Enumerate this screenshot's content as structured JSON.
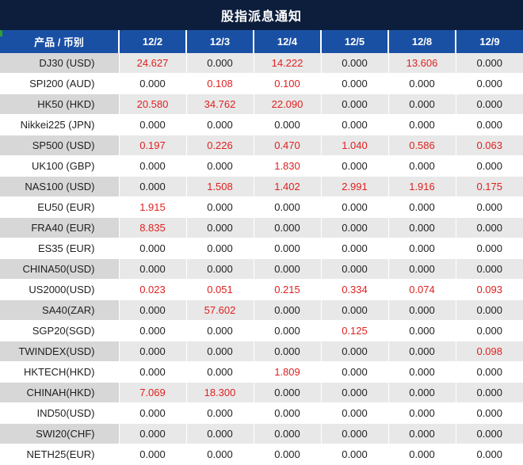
{
  "title": "股指派息通知",
  "table": {
    "product_header": "产品 / 币别",
    "date_headers": [
      "12/2",
      "12/3",
      "12/4",
      "12/5",
      "12/8",
      "12/9"
    ],
    "rows": [
      {
        "product": "DJ30 (USD)",
        "values": [
          "24.627",
          "0.000",
          "14.222",
          "0.000",
          "13.606",
          "0.000"
        ],
        "red": [
          true,
          false,
          true,
          false,
          true,
          false
        ]
      },
      {
        "product": "SPI200 (AUD)",
        "values": [
          "0.000",
          "0.108",
          "0.100",
          "0.000",
          "0.000",
          "0.000"
        ],
        "red": [
          false,
          true,
          true,
          false,
          false,
          false
        ]
      },
      {
        "product": "HK50 (HKD)",
        "values": [
          "20.580",
          "34.762",
          "22.090",
          "0.000",
          "0.000",
          "0.000"
        ],
        "red": [
          true,
          true,
          true,
          false,
          false,
          false
        ]
      },
      {
        "product": "Nikkei225 (JPN)",
        "values": [
          "0.000",
          "0.000",
          "0.000",
          "0.000",
          "0.000",
          "0.000"
        ],
        "red": [
          false,
          false,
          false,
          false,
          false,
          false
        ]
      },
      {
        "product": "SP500 (USD)",
        "values": [
          "0.197",
          "0.226",
          "0.470",
          "1.040",
          "0.586",
          "0.063"
        ],
        "red": [
          true,
          true,
          true,
          true,
          true,
          true
        ]
      },
      {
        "product": "UK100 (GBP)",
        "values": [
          "0.000",
          "0.000",
          "1.830",
          "0.000",
          "0.000",
          "0.000"
        ],
        "red": [
          false,
          false,
          true,
          false,
          false,
          false
        ]
      },
      {
        "product": "NAS100 (USD)",
        "values": [
          "0.000",
          "1.508",
          "1.402",
          "2.991",
          "1.916",
          "0.175"
        ],
        "red": [
          false,
          true,
          true,
          true,
          true,
          true
        ]
      },
      {
        "product": "EU50 (EUR)",
        "values": [
          "1.915",
          "0.000",
          "0.000",
          "0.000",
          "0.000",
          "0.000"
        ],
        "red": [
          true,
          false,
          false,
          false,
          false,
          false
        ]
      },
      {
        "product": "FRA40 (EUR)",
        "values": [
          "8.835",
          "0.000",
          "0.000",
          "0.000",
          "0.000",
          "0.000"
        ],
        "red": [
          true,
          false,
          false,
          false,
          false,
          false
        ]
      },
      {
        "product": "ES35 (EUR)",
        "values": [
          "0.000",
          "0.000",
          "0.000",
          "0.000",
          "0.000",
          "0.000"
        ],
        "red": [
          false,
          false,
          false,
          false,
          false,
          false
        ]
      },
      {
        "product": "CHINA50(USD)",
        "values": [
          "0.000",
          "0.000",
          "0.000",
          "0.000",
          "0.000",
          "0.000"
        ],
        "red": [
          false,
          false,
          false,
          false,
          false,
          false
        ]
      },
      {
        "product": "US2000(USD)",
        "values": [
          "0.023",
          "0.051",
          "0.215",
          "0.334",
          "0.074",
          "0.093"
        ],
        "red": [
          true,
          true,
          true,
          true,
          true,
          true
        ]
      },
      {
        "product": "SA40(ZAR)",
        "values": [
          "0.000",
          "57.602",
          "0.000",
          "0.000",
          "0.000",
          "0.000"
        ],
        "red": [
          false,
          true,
          false,
          false,
          false,
          false
        ]
      },
      {
        "product": "SGP20(SGD)",
        "values": [
          "0.000",
          "0.000",
          "0.000",
          "0.125",
          "0.000",
          "0.000"
        ],
        "red": [
          false,
          false,
          false,
          true,
          false,
          false
        ]
      },
      {
        "product": "TWINDEX(USD)",
        "values": [
          "0.000",
          "0.000",
          "0.000",
          "0.000",
          "0.000",
          "0.098"
        ],
        "red": [
          false,
          false,
          false,
          false,
          false,
          true
        ]
      },
      {
        "product": "HKTECH(HKD)",
        "values": [
          "0.000",
          "0.000",
          "1.809",
          "0.000",
          "0.000",
          "0.000"
        ],
        "red": [
          false,
          false,
          true,
          false,
          false,
          false
        ]
      },
      {
        "product": "CHINAH(HKD)",
        "values": [
          "7.069",
          "18.300",
          "0.000",
          "0.000",
          "0.000",
          "0.000"
        ],
        "red": [
          true,
          true,
          false,
          false,
          false,
          false
        ]
      },
      {
        "product": "IND50(USD)",
        "values": [
          "0.000",
          "0.000",
          "0.000",
          "0.000",
          "0.000",
          "0.000"
        ],
        "red": [
          false,
          false,
          false,
          false,
          false,
          false
        ]
      },
      {
        "product": "SWI20(CHF)",
        "values": [
          "0.000",
          "0.000",
          "0.000",
          "0.000",
          "0.000",
          "0.000"
        ],
        "red": [
          false,
          false,
          false,
          false,
          false,
          false
        ]
      },
      {
        "product": "NETH25(EUR)",
        "values": [
          "0.000",
          "0.000",
          "0.000",
          "0.000",
          "0.000",
          "0.000"
        ],
        "red": [
          false,
          false,
          false,
          false,
          false,
          false
        ]
      }
    ]
  },
  "colors": {
    "title_bg": "#0d1e3c",
    "header_bg": "#1950a4",
    "header_text": "#ffffff",
    "alt_product_bg": "#d7d7d7",
    "alt_value_bg": "#e8e8e8",
    "value_red": "#e02020",
    "text_dark": "#1f1f1f",
    "indicator_green": "#2da02d"
  }
}
